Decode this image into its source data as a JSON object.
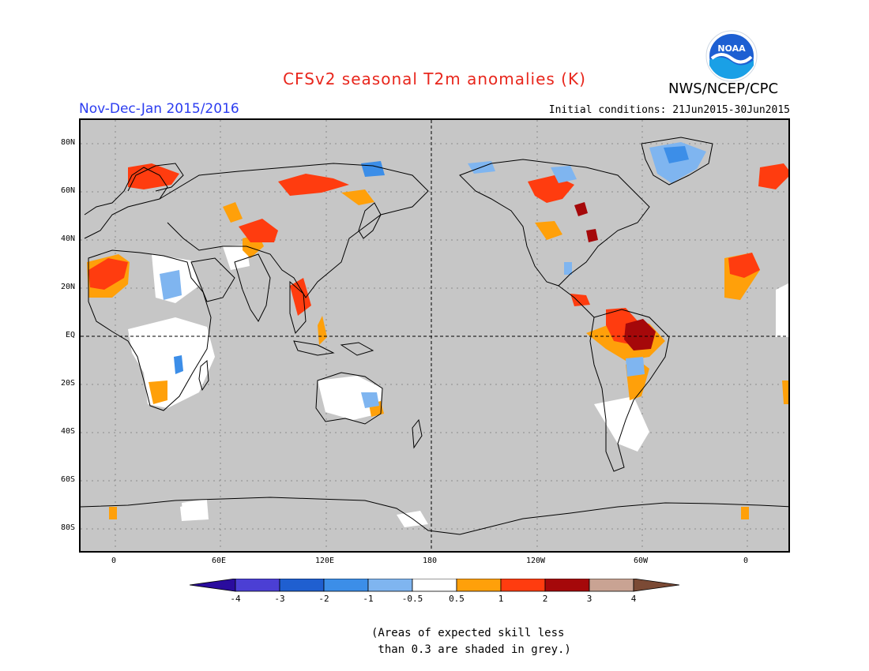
{
  "header": {
    "title": "CFSv2 seasonal T2m anomalies (K)",
    "agency": "NWS/NCEP/CPC",
    "period": "Nov-Dec-Jan 2015/2016",
    "initial_conditions": "Initial conditions: 21Jun2015-30Jun2015",
    "logo_text": "NOAA"
  },
  "map": {
    "lat_labels": [
      "80N",
      "60N",
      "40N",
      "20N",
      "EQ",
      "20S",
      "40S",
      "60S",
      "80S"
    ],
    "lon_labels": [
      "0",
      "60E",
      "120E",
      "180",
      "120W",
      "60W",
      "0"
    ],
    "background_color": "#c6c6c6"
  },
  "legend": {
    "labels": [
      "-4",
      "-3",
      "-2",
      "-1",
      "-0.5",
      "0.5",
      "1",
      "2",
      "3",
      "4"
    ],
    "colors": [
      "#2a0c9e",
      "#4b3fd4",
      "#1f5fd0",
      "#3c8ee8",
      "#7fb5f0",
      "#ffffff",
      "#ffa00a",
      "#ff3c0f",
      "#a5080a",
      "#c9a393",
      "#7b4a35"
    ]
  },
  "note": {
    "line1": "(Areas of expected skill less",
    "line2": " than 0.3 are shaded in grey.)"
  }
}
